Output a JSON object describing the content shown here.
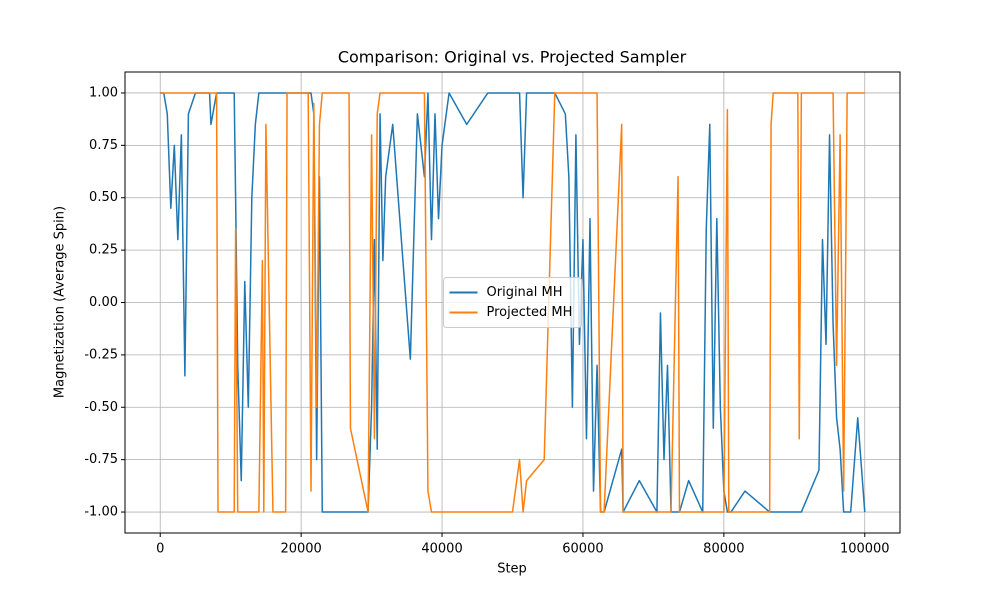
{
  "chart_data": {
    "type": "line",
    "title": "Comparison: Original vs. Projected Sampler",
    "xlabel": "Step",
    "ylabel": "Magnetization (Average Spin)",
    "x": [
      0,
      500,
      1000,
      1500,
      2000,
      2500,
      3000,
      3500,
      4000,
      5000,
      7000,
      7200,
      8000,
      8200,
      9000,
      10500,
      10700,
      11000,
      11500,
      12000,
      12500,
      13000,
      13500,
      14000,
      14500,
      14700,
      15000,
      16000,
      17800,
      18000,
      20000,
      21000,
      21400,
      21800,
      22200,
      22600,
      23000,
      25000,
      26800,
      27000,
      29500,
      30000,
      30400,
      30800,
      31200,
      31600,
      32000,
      33000,
      34000,
      35500,
      36500,
      37500,
      38000,
      38500,
      39000,
      39500,
      40000,
      41000,
      43500,
      46500,
      48000,
      50000,
      51000,
      51500,
      52000,
      54500,
      56000,
      57500,
      58000,
      58500,
      59000,
      59500,
      60000,
      60500,
      61000,
      61500,
      62000,
      62500,
      63000,
      65500,
      65700,
      68000,
      70500,
      71000,
      71500,
      72000,
      72500,
      73500,
      73700,
      75000,
      77000,
      77500,
      78000,
      78500,
      79000,
      79500,
      80000,
      80500,
      80700,
      81000,
      83000,
      86500,
      86700,
      87000,
      90500,
      90700,
      91000,
      93500,
      94000,
      94500,
      95000,
      95500,
      96000,
      96500,
      97000,
      97500,
      98000,
      99000,
      100000
    ],
    "series": [
      {
        "name": "Original MH",
        "color": "#1f77b4",
        "values": [
          1,
          1,
          0.9,
          0.45,
          0.75,
          0.3,
          0.8,
          -0.35,
          0.9,
          1,
          1,
          0.85,
          1,
          1,
          1,
          1,
          0.5,
          -0.3,
          -0.85,
          0.1,
          -0.5,
          0.5,
          0.85,
          1,
          1,
          1,
          1,
          1,
          1,
          1,
          1,
          1,
          1,
          0.9,
          -0.75,
          0.6,
          -1,
          -1,
          -1,
          -1,
          -1,
          -0.5,
          0.3,
          -0.7,
          0.9,
          0.2,
          0.6,
          0.85,
          0.4,
          -0.27,
          0.9,
          0.6,
          1,
          0.3,
          0.9,
          0.4,
          0.75,
          1,
          0.85,
          1,
          1,
          1,
          1,
          0.5,
          1,
          1,
          1,
          0.9,
          0.6,
          -0.5,
          0.8,
          -0.2,
          0.3,
          -0.65,
          0.4,
          -0.9,
          -0.3,
          -1,
          -1,
          -0.7,
          -1,
          -0.85,
          -1,
          -0.05,
          -0.75,
          -0.3,
          -1,
          -1,
          -1,
          -0.85,
          -1,
          0.35,
          0.85,
          -0.6,
          0.4,
          -0.5,
          -0.9,
          -1,
          -1,
          -1,
          -0.9,
          -1,
          -1,
          -1,
          -1,
          -1,
          -1,
          -0.8,
          0.3,
          -0.2,
          0.8,
          -0.1,
          -0.55,
          -0.7,
          -1,
          -1,
          -1,
          -0.55,
          -1
        ]
      },
      {
        "name": "Projected MH",
        "color": "#ff7f0e",
        "values": [
          1,
          1,
          1,
          1,
          1,
          1,
          1,
          1,
          1,
          1,
          1,
          1,
          1,
          -1,
          -1,
          -1,
          0.35,
          -1,
          -1,
          -1,
          -1,
          -1,
          -1,
          -1,
          0.2,
          -1,
          0.85,
          -1,
          -1,
          1,
          1,
          1,
          -0.9,
          0.95,
          -0.5,
          0.85,
          1,
          1,
          1,
          -0.6,
          -1,
          0.8,
          -0.65,
          0.9,
          1,
          1,
          1,
          1,
          1,
          1,
          1,
          1,
          -0.9,
          -1,
          -1,
          -1,
          -1,
          -1,
          -1,
          -1,
          -1,
          -1,
          -0.75,
          -1,
          -0.85,
          -0.75,
          1,
          1,
          1,
          1,
          1,
          1,
          1,
          1,
          1,
          1,
          1,
          -1,
          -1,
          0.85,
          -1,
          -1,
          -1,
          -1,
          -1,
          -1,
          -1,
          0.6,
          -1,
          -1,
          -1,
          -1,
          -1,
          -1,
          -1,
          -1,
          -1,
          0.92,
          -1,
          -1,
          -1,
          -1,
          0.85,
          1,
          1,
          -0.65,
          1,
          1,
          1,
          1,
          1,
          1,
          -0.3,
          0.8,
          -0.9,
          1,
          1,
          1,
          1
        ]
      }
    ],
    "xlim": [
      -5000,
      105000
    ],
    "ylim": [
      -1.1,
      1.1
    ],
    "xticks": [
      0,
      20000,
      40000,
      60000,
      80000,
      100000
    ],
    "yticks": [
      {
        "value": -1,
        "label": "-1.00"
      },
      {
        "value": -0.75,
        "label": "-0.75"
      },
      {
        "value": -0.5,
        "label": "-0.50"
      },
      {
        "value": -0.25,
        "label": "-0.25"
      },
      {
        "value": 0,
        "label": "0.00"
      },
      {
        "value": 0.25,
        "label": "0.25"
      },
      {
        "value": 0.5,
        "label": "0.50"
      },
      {
        "value": 0.75,
        "label": "0.75"
      },
      {
        "value": 1,
        "label": "1.00"
      }
    ],
    "grid": true,
    "legend": "center"
  }
}
